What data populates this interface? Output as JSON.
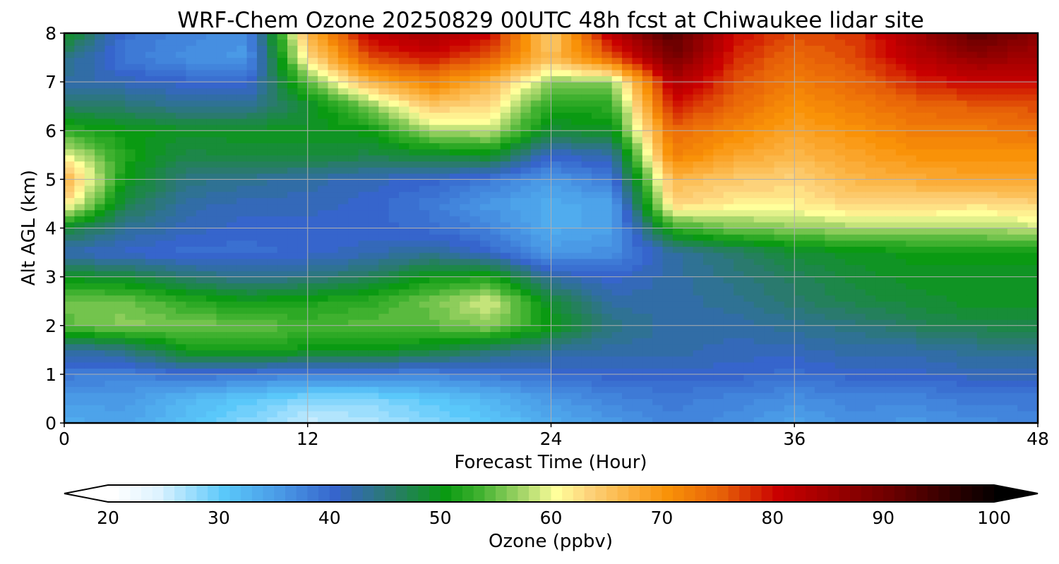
{
  "chart_data": {
    "type": "heatmap",
    "title": "WRF-Chem Ozone  20250829 00UTC 48h fcst at Chiwaukee lidar site",
    "xlabel": "Forecast Time (Hour)",
    "ylabel": "Alt AGL (km)",
    "xlim": [
      0,
      48
    ],
    "ylim": [
      0,
      8
    ],
    "xticks": [
      0,
      12,
      24,
      36,
      48
    ],
    "yticks": [
      0,
      1,
      2,
      3,
      4,
      5,
      6,
      7,
      8
    ],
    "grid": true,
    "x_hours": [
      0,
      3,
      6,
      9,
      12,
      15,
      18,
      21,
      24,
      27,
      30,
      33,
      36,
      39,
      42,
      45,
      48
    ],
    "z_km": [
      0,
      0.5,
      1,
      1.5,
      2,
      2.5,
      3,
      3.5,
      4,
      4.5,
      5,
      5.5,
      6,
      6.5,
      7,
      7.5,
      8
    ],
    "ozone_ppbv": [
      [
        33,
        34,
        31,
        28,
        25,
        26,
        28,
        30,
        33,
        35,
        37,
        36,
        34,
        36,
        35,
        36,
        37
      ],
      [
        35,
        35,
        32,
        30,
        28,
        28,
        30,
        32,
        35,
        37,
        38,
        37,
        36,
        37,
        37,
        38,
        38
      ],
      [
        38,
        37,
        39,
        38,
        37,
        37,
        37,
        38,
        39,
        40,
        40,
        40,
        39,
        40,
        40,
        41,
        41
      ],
      [
        42,
        44,
        50,
        51,
        50,
        50,
        48,
        45,
        43,
        42,
        42,
        41,
        41,
        42,
        42,
        43,
        43
      ],
      [
        54,
        56,
        55,
        55,
        53,
        54,
        54,
        56,
        50,
        44,
        42,
        42,
        43,
        44,
        46,
        47,
        47
      ],
      [
        55,
        55,
        52,
        50,
        51,
        52,
        55,
        59,
        48,
        42,
        42,
        43,
        45,
        47,
        48,
        49,
        49
      ],
      [
        49,
        48,
        45,
        43,
        44,
        46,
        50,
        51,
        42,
        40,
        42,
        44,
        46,
        48,
        49,
        49,
        49
      ],
      [
        41,
        40,
        39,
        39,
        40,
        41,
        43,
        40,
        35,
        36,
        42,
        45,
        48,
        49,
        50,
        50,
        50
      ],
      [
        48,
        43,
        41,
        40,
        40,
        40,
        39,
        37,
        33,
        34,
        52,
        55,
        56,
        57,
        57,
        57,
        58
      ],
      [
        62,
        47,
        42,
        41,
        41,
        40,
        38,
        35,
        33,
        34,
        63,
        61,
        61,
        63,
        63,
        62,
        63
      ],
      [
        67,
        50,
        44,
        43,
        42,
        41,
        40,
        38,
        35,
        38,
        66,
        64,
        63,
        66,
        67,
        68,
        68
      ],
      [
        60,
        51,
        47,
        48,
        48,
        47,
        48,
        49,
        40,
        42,
        72,
        68,
        66,
        68,
        70,
        70,
        70
      ],
      [
        52,
        50,
        49,
        49,
        49,
        50,
        57,
        58,
        48,
        49,
        74,
        71,
        68,
        70,
        72,
        72,
        73
      ],
      [
        46,
        45,
        43,
        43,
        48,
        55,
        64,
        62,
        51,
        52,
        79,
        74,
        70,
        72,
        74,
        75,
        76
      ],
      [
        42,
        41,
        40,
        39,
        54,
        66,
        72,
        66,
        56,
        56,
        83,
        76,
        72,
        74,
        78,
        80,
        80
      ],
      [
        44,
        38,
        36,
        35,
        62,
        76,
        79,
        75,
        65,
        75,
        89,
        78,
        74,
        76,
        82,
        86,
        84
      ],
      [
        50,
        39,
        37,
        36,
        66,
        81,
        84,
        80,
        63,
        82,
        93,
        80,
        76,
        77,
        84,
        92,
        87
      ]
    ],
    "colorbar": {
      "label": "Ozone  (ppbv)",
      "min": 20,
      "max": 100,
      "ticks": [
        20,
        30,
        40,
        50,
        60,
        70,
        80,
        90,
        100
      ],
      "extend": "both",
      "stops": [
        [
          20,
          "#ffffff"
        ],
        [
          24,
          "#def3ff"
        ],
        [
          30,
          "#5ac8fa"
        ],
        [
          35,
          "#4a9ae6"
        ],
        [
          40,
          "#3665cc"
        ],
        [
          45,
          "#2a7a6e"
        ],
        [
          50,
          "#0a9a12"
        ],
        [
          53,
          "#3fb12f"
        ],
        [
          57,
          "#a7d66a"
        ],
        [
          60,
          "#ffff9b"
        ],
        [
          63,
          "#fdd27a"
        ],
        [
          70,
          "#f99208"
        ],
        [
          75,
          "#e65f08"
        ],
        [
          80,
          "#c90000"
        ],
        [
          90,
          "#6e0000"
        ],
        [
          100,
          "#000000"
        ]
      ]
    }
  }
}
